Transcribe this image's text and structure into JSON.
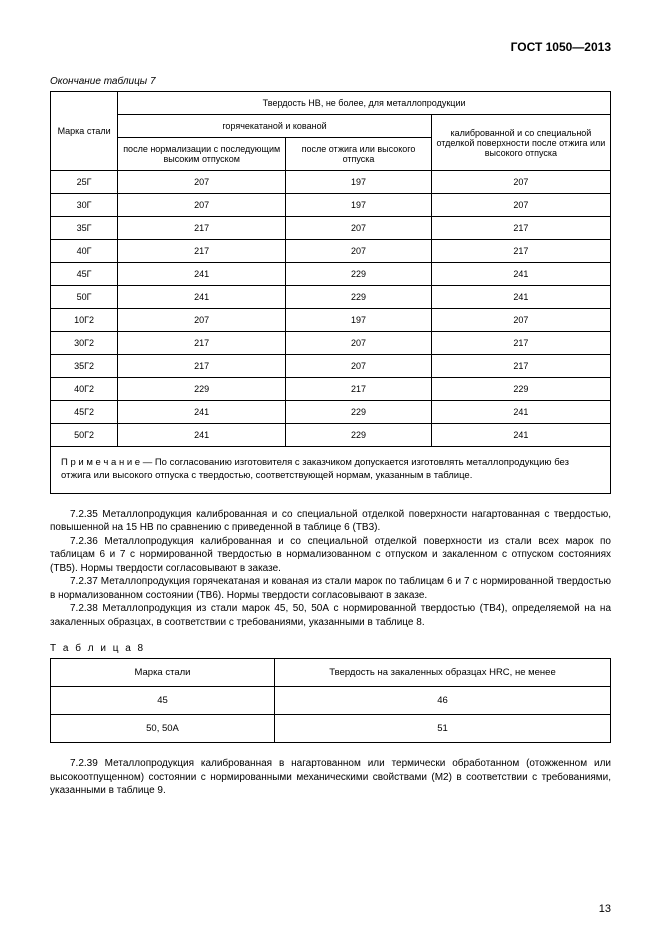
{
  "header": "ГОСТ 1050—2013",
  "table7": {
    "caption": "Окончание таблицы 7",
    "head": {
      "col1": "Марка стали",
      "top": "Твердость НВ, не более, для металлопродукции",
      "sub_left": "горячекатаной и кованой",
      "sub_right": "калиброванной и со специальной отделкой поверхности после отжига или высокого отпуска",
      "sub_left_a": "после нормализации с последующим высоким отпуском",
      "sub_left_b": "после отжига или высокого отпуска"
    },
    "rows": [
      {
        "m": "25Г",
        "a": "207",
        "b": "197",
        "c": "207"
      },
      {
        "m": "30Г",
        "a": "207",
        "b": "197",
        "c": "207"
      },
      {
        "m": "35Г",
        "a": "217",
        "b": "207",
        "c": "217"
      },
      {
        "m": "40Г",
        "a": "217",
        "b": "207",
        "c": "217"
      },
      {
        "m": "45Г",
        "a": "241",
        "b": "229",
        "c": "241"
      },
      {
        "m": "50Г",
        "a": "241",
        "b": "229",
        "c": "241"
      },
      {
        "m": "10Г2",
        "a": "207",
        "b": "197",
        "c": "207"
      },
      {
        "m": "30Г2",
        "a": "217",
        "b": "207",
        "c": "217"
      },
      {
        "m": "35Г2",
        "a": "217",
        "b": "207",
        "c": "217"
      },
      {
        "m": "40Г2",
        "a": "229",
        "b": "217",
        "c": "229"
      },
      {
        "m": "45Г2",
        "a": "241",
        "b": "229",
        "c": "241"
      },
      {
        "m": "50Г2",
        "a": "241",
        "b": "229",
        "c": "241"
      }
    ],
    "note": "П р и м е ч а н и е  — По согласованию изготовителя с заказчиком допускается изготовлять металлопродукцию без отжига или высокого отпуска с твердостью, соответствующей нормам, указанным в таблице."
  },
  "paragraphs": {
    "p1": "7.2.35  Металлопродукция калиброванная и со специальной отделкой поверхности нагартованная с твердостью, повышенной на 15 НВ по сравнению с приведенной в таблице 6 (ТВ3).",
    "p2": "7.2.36  Металлопродукция калиброванная и со специальной отделкой поверхности из стали всех марок по таблицам 6 и 7 с нормированной твердостью в нормализованном с отпуском и закаленном с отпуском состояниях (ТВ5). Нормы твердости согласовывают в заказе.",
    "p3": "7.2.37  Металлопродукция горячекатаная и кованая из стали марок по таблицам 6 и 7 с нормированной твердостью в нормализованном состоянии (ТВ6). Нормы твердости согласовывают в заказе.",
    "p4": "7.2.38  Металлопродукция из стали марок 45, 50, 50А с нормированной твердостью (ТВ4), определяемой на на закаленных образцах, в соответствии с требованиями, указанными в таблице 8."
  },
  "table8": {
    "label": "Т а б л и ц а  8",
    "head": {
      "c1": "Марка стали",
      "c2": "Твердость на закаленных образцах HRC, не менее"
    },
    "rows": [
      {
        "m": "45",
        "v": "46"
      },
      {
        "m": "50, 50А",
        "v": "51"
      }
    ]
  },
  "p5": "7.2.39  Металлопродукция калиброванная в нагартованном или термически обработанном (отожженном или высокоотпущенном) состоянии с нормированными механическими свойствами (М2) в соответствии с требованиями, указанными в таблице 9.",
  "pageNumber": "13"
}
